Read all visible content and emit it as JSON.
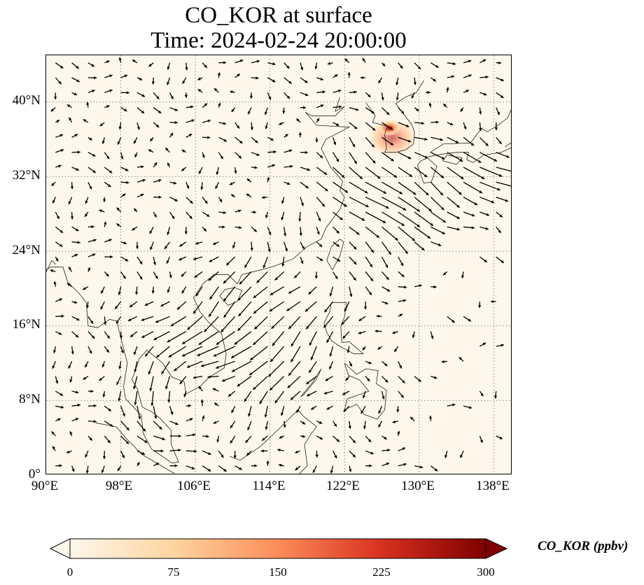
{
  "title": {
    "line1": "CO_KOR at surface",
    "line2": "Time: 2024-02-24 20:00:00"
  },
  "map": {
    "projection": "PlateCarree",
    "lon_range": [
      90,
      140
    ],
    "lat_range": [
      0,
      45
    ],
    "background_color": "#fff7ec",
    "gridlines": "dotted",
    "y_ticks": [
      "0°",
      "8°N",
      "16°N",
      "24°N",
      "32°N",
      "40°N"
    ],
    "x_ticks": [
      "90°E",
      "98°E",
      "106°E",
      "114°E",
      "122°E",
      "130°E",
      "138°E"
    ],
    "vector_field": "surface wind arrows (black)",
    "hotspot": {
      "lon": 126.8,
      "lat": 37.5,
      "peak_ppbv": 300,
      "desc": "Seoul metropolitan area"
    }
  },
  "colorbar": {
    "label": "CO_KOR (ppbv)",
    "colormap": "OrRd",
    "min": 0,
    "max": 300,
    "extend": "both",
    "ticks": [
      "0",
      "75",
      "150",
      "225",
      "300"
    ],
    "colors": [
      "#fff7ec",
      "#fdd49e",
      "#fc8d59",
      "#d7301f",
      "#7f0000"
    ]
  }
}
